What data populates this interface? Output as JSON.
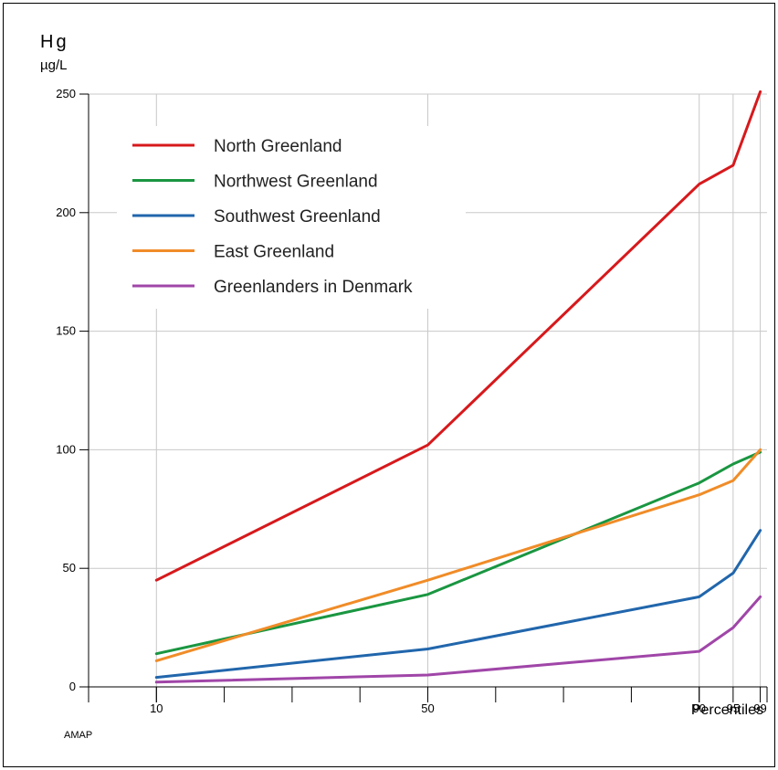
{
  "chart_data": {
    "type": "line",
    "ylabel_main": "Hg",
    "ylabel_unit": "µg/L",
    "xlabel": "Percentiles",
    "source": "AMAP",
    "x": [
      10,
      50,
      90,
      95,
      99
    ],
    "xtick_labels": [
      "10",
      "50",
      "90",
      "95",
      "99"
    ],
    "ylim": [
      0,
      250
    ],
    "yticks": [
      0,
      50,
      100,
      150,
      200,
      250
    ],
    "ytick_labels": [
      "0",
      "50",
      "100",
      "150",
      "200",
      "250"
    ],
    "grid": true,
    "legend_position": "top-left",
    "series": [
      {
        "name": "North Greenland",
        "color": "#d7191c",
        "values": [
          45,
          102,
          212,
          220,
          251
        ]
      },
      {
        "name": "Northwest Greenland",
        "color": "#1a9641",
        "values": [
          14,
          39,
          86,
          94,
          99
        ]
      },
      {
        "name": "Southwest Greenland",
        "color": "#2166ac",
        "values": [
          4,
          16,
          38,
          48,
          66
        ]
      },
      {
        "name": "East Greenland",
        "color": "#f08c28",
        "values": [
          11,
          45,
          81,
          87,
          100
        ]
      },
      {
        "name": "Greenlanders in Denmark",
        "color": "#a046a8",
        "values": [
          2,
          5,
          15,
          25,
          38
        ]
      }
    ]
  }
}
